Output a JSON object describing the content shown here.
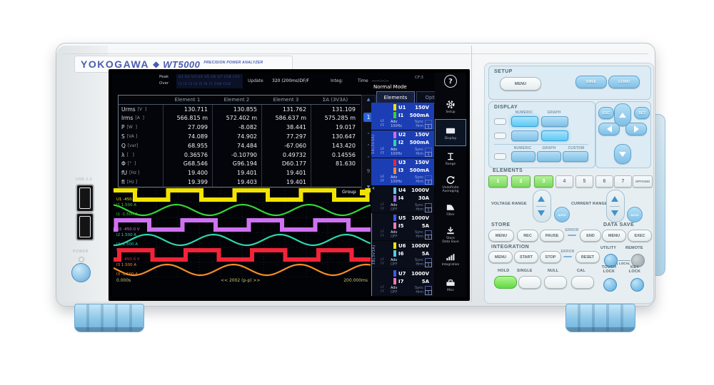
{
  "brand": {
    "logo": "YOKOGAWA",
    "diamond": "◆",
    "model": "WT5000",
    "tagline": "PRECISION POWER ANALYZER"
  },
  "device": {
    "usb_label": "USB 2.0",
    "power_label": "POWER"
  },
  "screen": {
    "status": {
      "peak_label": "Peak",
      "over_label": "Over",
      "peak_ind": "U1 U2 U3 U4 U5 U6 U7 ChB ChC",
      "over_ind": "I1 I2 I3 I4 I5 I6 I7 ChB ChD",
      "update_label": "Update",
      "update_value": "320 (200ms)DF/F",
      "integ_label": "Integ:",
      "time_label": "Time",
      "time_value": "-----:--:--"
    },
    "mode": "Normal Mode",
    "cf": "CF:3",
    "help_icon": "?",
    "tabs": {
      "elements": "Elements",
      "options": "Options"
    },
    "table": {
      "headers": [
        "Element 1",
        "Element 2",
        "Element 3",
        "ΣA (3V3A)"
      ],
      "rows": [
        {
          "name": "Urms",
          "unit": "[V  ]",
          "values": [
            "130.711",
            "130.855",
            "131.762",
            "131.109"
          ]
        },
        {
          "name": "Irms",
          "unit": "[A  ]",
          "values": [
            "566.815 m",
            "572.402 m",
            "586.637 m",
            "575.285 m"
          ]
        },
        {
          "name": "P",
          "unit": "[W  ]",
          "values": [
            "27.099",
            "-8.082",
            "38.441",
            "19.017"
          ]
        },
        {
          "name": "S",
          "unit": "[VA ]",
          "values": [
            "74.089",
            "74.902",
            "77.297",
            "130.647"
          ]
        },
        {
          "name": "Q",
          "unit": "[var]",
          "values": [
            "68.955",
            "74.484",
            "-67.060",
            "143.420"
          ]
        },
        {
          "name": "λ",
          "unit": "[   ]",
          "values": [
            "0.36576",
            "-0.10790",
            "0.49732",
            "0.14556"
          ]
        },
        {
          "name": "Φ",
          "unit": "[°  ]",
          "values": [
            "G68.546",
            "G96.194",
            "D60.177",
            "81.630"
          ]
        },
        {
          "name": "fU",
          "unit": "[Hz ]",
          "values": [
            "19.400",
            "19.401",
            "19.401",
            ""
          ]
        },
        {
          "name": "fI",
          "unit": "[Hz ]",
          "values": [
            "19.399",
            "19.403",
            "19.401",
            ""
          ]
        }
      ]
    },
    "scrollbar": {
      "page": "1",
      "last": "9"
    },
    "element_groups": {
      "a": "ΣA(3V3A)",
      "e4": "4",
      "b": "ΣB(3V3A)"
    },
    "elements": [
      {
        "u": "U1",
        "u_range": "150V",
        "u_color": "#f2e400",
        "i": "I1",
        "i_range": "500mA",
        "i_color": "#35d435",
        "lf": "LF",
        "ff": "FF",
        "adv": "Adv",
        "freq": "100Hz",
        "sync": "Sync",
        "hrm": "Hrm",
        "box2": "1",
        "group": "a"
      },
      {
        "u": "U2",
        "u_range": "150V",
        "u_color": "#d06cf0",
        "i": "I2",
        "i_range": "500mA",
        "i_color": "#2fd4ae",
        "lf": "LF",
        "ff": "FF",
        "adv": "Adv",
        "freq": "100Hz",
        "sync": "Sync",
        "hrm": "Hrm",
        "box2": "1",
        "group": "a"
      },
      {
        "u": "U3",
        "u_range": "150V",
        "u_color": "#f22338",
        "i": "I3",
        "i_range": "500mA",
        "i_color": "#f28c28",
        "lf": "LF",
        "ff": "FF",
        "adv": "Adv",
        "freq": "100Hz",
        "sync": "Sync",
        "hrm": "Hrm",
        "box2": "1",
        "group": "a"
      },
      {
        "u": "U4",
        "u_range": "1000V",
        "u_color": "#62c8f0",
        "i": "I4",
        "i_range": "30A",
        "i_color": "#9a6cf0",
        "lf": "LF",
        "ff": "FF",
        "adv": "Adv",
        "freq": "OFF",
        "sync": "Sync",
        "hrm": "Hrm",
        "box2": "1",
        "group": "e4"
      },
      {
        "u": "U5",
        "u_range": "1000V",
        "u_color": "#3a5ce8",
        "i": "I5",
        "i_range": "5A",
        "i_color": "#f078b4",
        "lf": "LF",
        "ff": "FF",
        "adv": "Adv",
        "freq": "OFF",
        "sync": "Sync",
        "hrm": "Hrm",
        "box2": "1",
        "group": "b"
      },
      {
        "u": "U6",
        "u_range": "1000V",
        "u_color": "#f2e400",
        "i": "I6",
        "i_range": "5A",
        "i_color": "#45d0e8",
        "lf": "LF",
        "ff": "FF",
        "adv": "Adv",
        "freq": "OFF",
        "sync": "Sync",
        "hrm": "Hrm",
        "box2": "1",
        "group": "b"
      },
      {
        "u": "U7",
        "u_range": "1000V",
        "u_color": "#3a5ce8",
        "i": "I7",
        "i_range": "5A",
        "i_color": "#f078b4",
        "lf": "LF",
        "ff": "FF",
        "adv": "Adv",
        "freq": "OFF",
        "sync": "Sync",
        "hrm": "Hrm",
        "box2": "1",
        "group": "b"
      }
    ],
    "sidebar": [
      {
        "icon": "gear-icon",
        "line1": "Setup",
        "line2": "",
        "active": false
      },
      {
        "icon": "display-icon",
        "line1": "Display",
        "line2": "",
        "active": true
      },
      {
        "icon": "range-icon",
        "line1": "Range",
        "line2": "",
        "active": false
      },
      {
        "icon": "averaging-icon",
        "line1": "Undefinite",
        "line2": "Averaging",
        "active": false
      },
      {
        "icon": "filter-icon",
        "line1": "Filter",
        "line2": "",
        "active": false
      },
      {
        "icon": "store-icon",
        "line1": "Store",
        "line2": "Data Save",
        "active": false
      },
      {
        "icon": "integration-icon",
        "line1": "Integration",
        "line2": "",
        "active": false
      },
      {
        "icon": "misc-icon",
        "line1": "Misc",
        "line2": "",
        "active": false
      }
    ],
    "waveform": {
      "group_label": "Group",
      "x_start": "0.000s",
      "x_center": "<< 2002 (p-p) >>",
      "x_end": "200.000ms",
      "traces": [
        {
          "ch": "U1",
          "max": "450.0 V",
          "min": "-450.0 V",
          "color": "#f2e400",
          "type": "square",
          "period": 93,
          "phase": 1.114
        },
        {
          "ch": "I1",
          "max": "1.500 A",
          "min": "-1.500 A",
          "color": "#35d435",
          "type": "sine",
          "period": 93,
          "phase": -5
        },
        {
          "ch": "U2",
          "max": "450.0 V",
          "min": "-450.0 V",
          "color": "#cf72f2",
          "type": "square",
          "period": 93,
          "phase": -0.236
        },
        {
          "ch": "I2",
          "max": "1.500 A",
          "min": "-1.500 A",
          "color": "#2fd4ae",
          "type": "sine",
          "period": 93,
          "phase": 47
        },
        {
          "ch": "U3",
          "max": "450.0 V",
          "min": "-450.0 V",
          "color": "#f22338",
          "type": "square",
          "period": 93,
          "phase": -0.54
        },
        {
          "ch": "I3",
          "max": "1.500 A",
          "min": "-1.500 A",
          "color": "#f28c28",
          "type": "sine",
          "period": 93,
          "phase": 75
        }
      ]
    }
  },
  "panel": {
    "setup": {
      "title": "SETUP",
      "menu": "MENU",
      "save": "SAVE",
      "load": "LOAD"
    },
    "display": {
      "title": "DISPLAY",
      "numeric": "NUMERIC",
      "graph": "GRAPH",
      "custom": "CUSTOM"
    },
    "nav": {
      "esc": "ESC",
      "set": "SET"
    },
    "elements": {
      "title": "ELEMENTS",
      "buttons": [
        "1",
        "2",
        "3",
        "4",
        "5",
        "6",
        "7"
      ],
      "options": "OPTIONS"
    },
    "voltage": {
      "label": "VOLTAGE RANGE",
      "auto": "AUTO"
    },
    "current": {
      "label": "CURRENT RANGE",
      "auto": "AUTO"
    },
    "store": {
      "title": "STORE",
      "menu": "MENU",
      "rec": "REC",
      "pause": "PAUSE",
      "error": "ERROR",
      "end": "END"
    },
    "data_save": {
      "title": "DATA SAVE",
      "menu": "MENU",
      "exec": "EXEC"
    },
    "integration": {
      "title": "INTEGRATION",
      "menu": "MENU",
      "start": "START",
      "stop": "STOP",
      "error": "ERROR",
      "reset": "RESET"
    },
    "utility": {
      "label": "UTILITY",
      "remote": "REMOTE",
      "local": "LOCAL"
    },
    "hold": "HOLD",
    "single": "SINGLE",
    "null_label": "NULL",
    "cal": "CAL",
    "touch_lock_1": "TOUCH",
    "touch_lock_2": "LOCK",
    "key_lock_1": "KEY",
    "key_lock_2": "LOCK"
  }
}
